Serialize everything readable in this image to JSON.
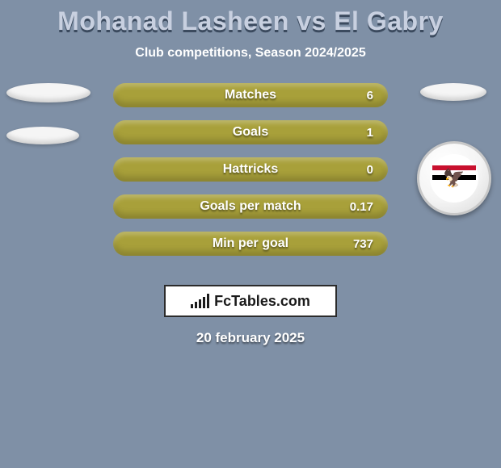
{
  "background_color": "#7f90a6",
  "title": "Mohanad Lasheen vs El Gabry",
  "title_color": "#c8d0e0",
  "title_shadow": "#3b4a5e",
  "subtitle": "Club competitions, Season 2024/2025",
  "subtitle_color": "#ffffff",
  "left_pills": [
    {
      "w": 104,
      "h": 24,
      "color": "#f5f5f5"
    },
    {
      "w": 90,
      "h": 22,
      "color": "#f5f5f5"
    }
  ],
  "right_pill": {
    "w": 82,
    "h": 22,
    "color": "#f5f5f5"
  },
  "badge": {
    "flag_top": "#c8102e",
    "flag_mid": "#ffffff",
    "flag_bot": "#000000",
    "eagle_glyph": "🦅"
  },
  "bars": {
    "color": "#a8a03a",
    "label_color": "#ffffff",
    "value_color": "#ffffff",
    "items": [
      {
        "label": "Matches",
        "value": "6"
      },
      {
        "label": "Goals",
        "value": "1"
      },
      {
        "label": "Hattricks",
        "value": "0"
      },
      {
        "label": "Goals per match",
        "value": "0.17"
      },
      {
        "label": "Min per goal",
        "value": "737"
      }
    ]
  },
  "logo": {
    "text": "FcTables.com",
    "border_color": "#2b2b2b",
    "bg_color": "#ffffff",
    "text_color": "#1a1a1a",
    "bar_color": "#1a1a1a",
    "bar_heights": [
      5,
      8,
      11,
      14,
      18
    ]
  },
  "date": "20 february 2025",
  "date_color": "#ffffff"
}
